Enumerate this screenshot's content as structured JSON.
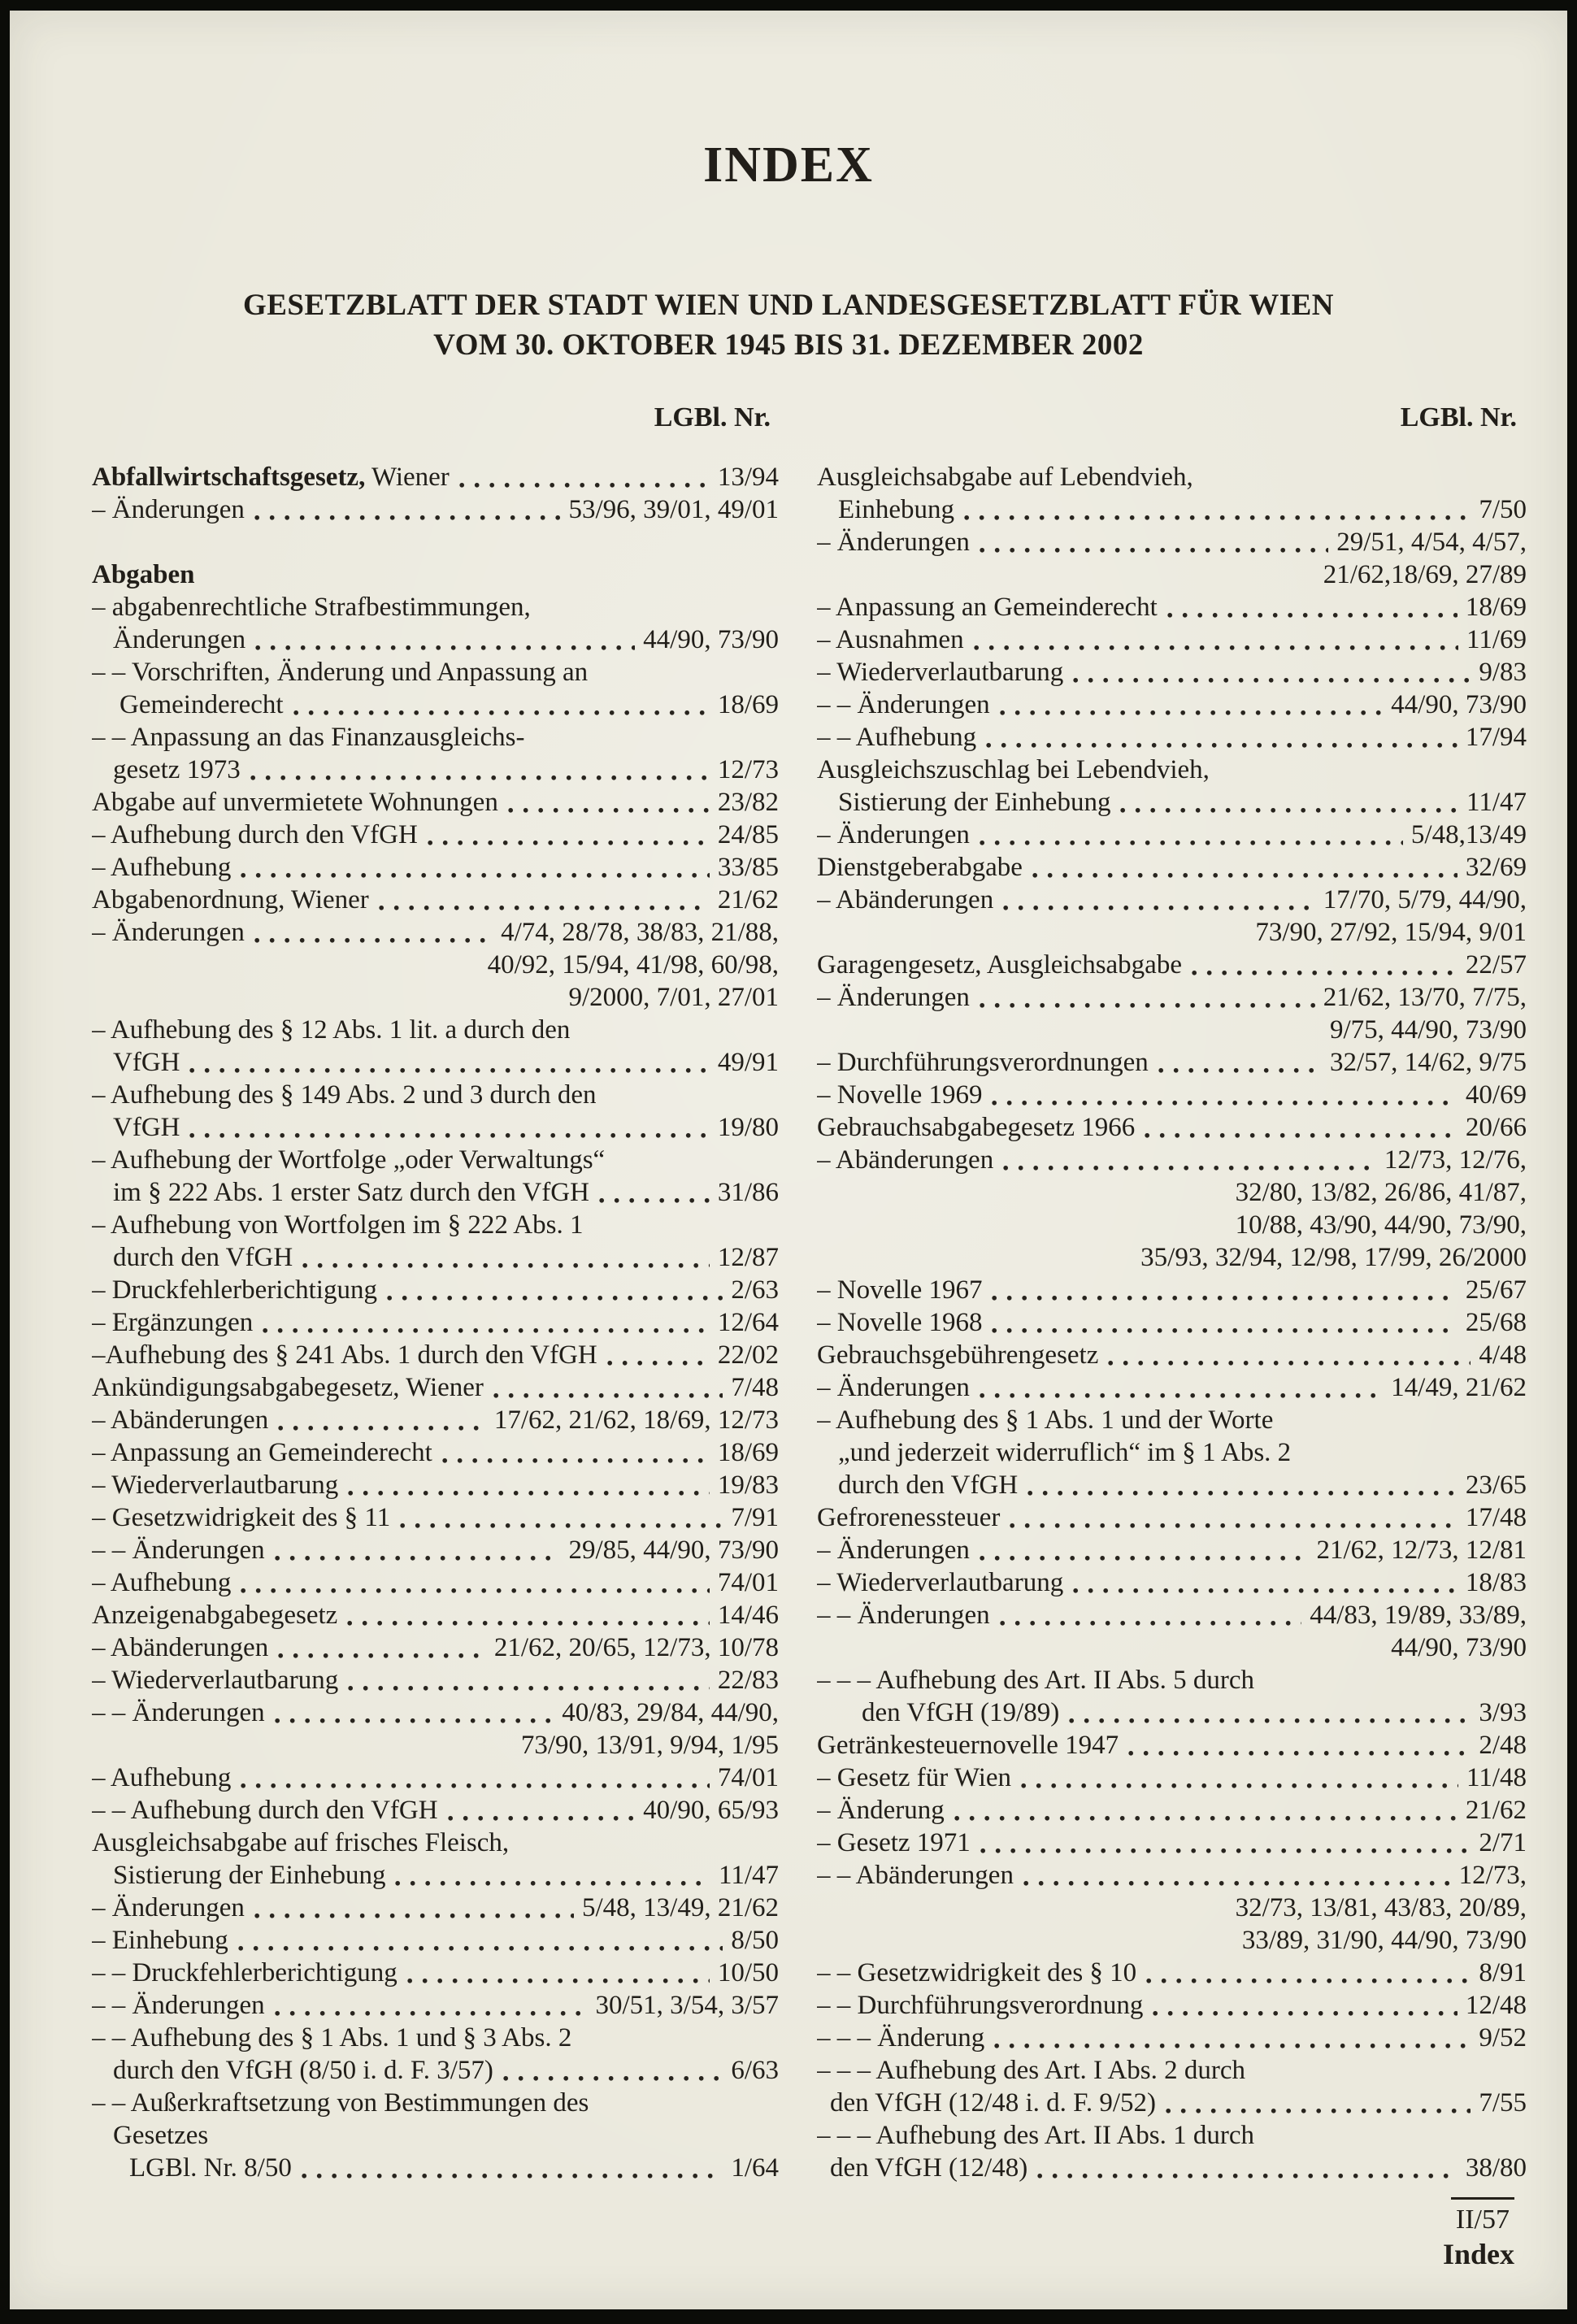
{
  "document": {
    "title": "INDEX",
    "subtitle_line1": "GESETZBLATT DER STADT WIEN UND LANDESGESETZBLATT FÜR WIEN",
    "subtitle_line2": "VOM 30. OKTOBER 1945 BIS 31. DEZEMBER 2002",
    "column_headers": {
      "left": "LGBl. Nr.",
      "right": "LGBl. Nr."
    },
    "footer": {
      "page_ref": "II/57",
      "section": "Index"
    },
    "colors": {
      "paper": "#ebe9dd",
      "ink": "#211e19",
      "frame": "#0b0c08"
    }
  },
  "index": {
    "left": [
      {
        "bt": "Abfallwirtschaftsgesetz,",
        "t": " Wiener",
        "dots": true,
        "ref": "13/94"
      },
      {
        "t": "– Änderungen",
        "dots": true,
        "ref": "53/96, 39/01, 49/01"
      },
      {
        "blank": true
      },
      {
        "bt": "Abgaben"
      },
      {
        "t": "– abgabenrechtliche Strafbestimmungen,"
      },
      {
        "t": "Änderungen",
        "ind": 26,
        "dots": true,
        "ref": "44/90, 73/90"
      },
      {
        "t": "– – Vorschriften, Änderung und Anpassung an"
      },
      {
        "t": "Gemeinderecht",
        "ind": 34,
        "dots": true,
        "ref": "18/69"
      },
      {
        "t": "– – Anpassung an das Finanzausgleichs-"
      },
      {
        "t": "gesetz 1973",
        "ind": 26,
        "dots": true,
        "ref": "12/73"
      },
      {
        "t": "Abgabe auf unvermietete Wohnungen",
        "dots": true,
        "ref": "23/82"
      },
      {
        "t": "– Aufhebung durch den VfGH",
        "dots": true,
        "ref": "24/85"
      },
      {
        "t": "– Aufhebung",
        "dots": true,
        "ref": "33/85"
      },
      {
        "t": "Abgabenordnung, Wiener",
        "dots": true,
        "ref": "21/62"
      },
      {
        "t": "– Änderungen",
        "dots": true,
        "ref": "4/74, 28/78, 38/83, 21/88,"
      },
      {
        "ref": "40/92, 15/94, 41/98, 60/98,"
      },
      {
        "ref": "9/2000, 7/01, 27/01"
      },
      {
        "t": "– Aufhebung des § 12 Abs. 1 lit. a durch den"
      },
      {
        "t": "VfGH",
        "ind": 26,
        "dots": true,
        "ref": "49/91"
      },
      {
        "t": "– Aufhebung des § 149 Abs. 2 und 3 durch den"
      },
      {
        "t": "VfGH",
        "ind": 26,
        "dots": true,
        "ref": "19/80"
      },
      {
        "t": "– Aufhebung der Wortfolge „oder Verwaltungs“"
      },
      {
        "t": "im § 222 Abs. 1 erster Satz durch den VfGH",
        "ind": 26,
        "dots": true,
        "ref": "31/86"
      },
      {
        "t": "– Aufhebung von Wortfolgen im § 222 Abs. 1"
      },
      {
        "t": "durch den VfGH",
        "ind": 26,
        "dots": true,
        "ref": "12/87"
      },
      {
        "t": "– Druckfehlerberichtigung",
        "dots": true,
        "ref": "2/63"
      },
      {
        "t": "– Ergänzungen",
        "dots": true,
        "ref": "12/64"
      },
      {
        "t": "–Aufhebung des § 241 Abs. 1 durch den VfGH",
        "dots": true,
        "ref": "22/02"
      },
      {
        "t": "Ankündigungsabgabegesetz, Wiener",
        "dots": true,
        "ref": "7/48"
      },
      {
        "t": "– Abänderungen",
        "dots": true,
        "ref": "17/62, 21/62, 18/69, 12/73"
      },
      {
        "t": "– Anpassung an Gemeinderecht",
        "dots": true,
        "ref": "18/69"
      },
      {
        "t": "– Wiederverlautbarung",
        "dots": true,
        "ref": "19/83"
      },
      {
        "t": "– Gesetzwidrigkeit des § 11",
        "dots": true,
        "ref": "7/91"
      },
      {
        "t": "– – Änderungen",
        "dots": true,
        "ref": "29/85, 44/90, 73/90"
      },
      {
        "t": "– Aufhebung",
        "dots": true,
        "ref": "74/01"
      },
      {
        "t": "Anzeigenabgabegesetz",
        "dots": true,
        "ref": "14/46"
      },
      {
        "t": "– Abänderungen",
        "dots": true,
        "ref": "21/62, 20/65, 12/73, 10/78"
      },
      {
        "t": "– Wiederverlautbarung",
        "dots": true,
        "ref": "22/83"
      },
      {
        "t": "– – Änderungen",
        "dots": true,
        "ref": "40/83, 29/84, 44/90,"
      },
      {
        "ref": "73/90, 13/91, 9/94, 1/95"
      },
      {
        "t": "– Aufhebung",
        "dots": true,
        "ref": "74/01"
      },
      {
        "t": "– – Aufhebung durch den VfGH",
        "dots": true,
        "ref": "40/90, 65/93"
      },
      {
        "t": "Ausgleichsabgabe auf frisches Fleisch,"
      },
      {
        "t": "Sistierung der Einhebung",
        "ind": 26,
        "dots": true,
        "ref": "11/47"
      },
      {
        "t": "– Änderungen",
        "dots": true,
        "ref": "5/48, 13/49, 21/62"
      },
      {
        "t": "– Einhebung",
        "dots": true,
        "ref": "8/50"
      },
      {
        "t": "– – Druckfehlerberichtigung",
        "dots": true,
        "ref": "10/50"
      },
      {
        "t": "– – Änderungen",
        "dots": true,
        "ref": "30/51, 3/54, 3/57"
      },
      {
        "t": "– – Aufhebung des § 1 Abs. 1 und § 3 Abs. 2"
      },
      {
        "t": "durch den VfGH (8/50 i. d. F. 3/57)",
        "ind": 26,
        "dots": true,
        "ref": "6/63"
      },
      {
        "t": "– – Außerkraftsetzung von Bestimmungen des"
      },
      {
        "t": "Gesetzes",
        "ind": 26
      },
      {
        "t": "LGBl. Nr. 8/50",
        "ind": 46,
        "dots": true,
        "ref": "1/64"
      }
    ],
    "right": [
      {
        "t": "Ausgleichsabgabe auf Lebendvieh,"
      },
      {
        "t": "Einhebung",
        "ind": 26,
        "dots": true,
        "ref": "7/50"
      },
      {
        "t": "– Änderungen",
        "dots": true,
        "ref": "29/51, 4/54, 4/57,"
      },
      {
        "ref": "21/62,18/69, 27/89"
      },
      {
        "t": "– Anpassung an Gemeinderecht",
        "dots": true,
        "ref": "18/69"
      },
      {
        "t": "– Ausnahmen",
        "dots": true,
        "ref": "11/69"
      },
      {
        "t": "– Wiederverlautbarung",
        "dots": true,
        "ref": "9/83"
      },
      {
        "t": "– – Änderungen",
        "dots": true,
        "ref": "44/90, 73/90"
      },
      {
        "t": "– – Aufhebung",
        "dots": true,
        "ref": "17/94"
      },
      {
        "t": "Ausgleichszuschlag bei Lebendvieh,"
      },
      {
        "t": "Sistierung der Einhebung",
        "ind": 26,
        "dots": true,
        "ref": "11/47"
      },
      {
        "t": "– Änderungen",
        "dots": true,
        "ref": "5/48,13/49"
      },
      {
        "t": "Dienstgeberabgabe",
        "dots": true,
        "ref": "32/69"
      },
      {
        "t": "– Abänderungen",
        "dots": true,
        "ref": "17/70, 5/79, 44/90,"
      },
      {
        "ref": "73/90, 27/92, 15/94, 9/01"
      },
      {
        "t": "Garagengesetz, Ausgleichsabgabe",
        "dots": true,
        "ref": "22/57"
      },
      {
        "t": "– Änderungen",
        "dots": true,
        "ref": "21/62, 13/70, 7/75,"
      },
      {
        "ref": "9/75, 44/90, 73/90"
      },
      {
        "t": "– Durchführungsverordnungen",
        "dots": true,
        "ref": "32/57, 14/62, 9/75"
      },
      {
        "t": "– Novelle 1969",
        "dots": true,
        "ref": "40/69"
      },
      {
        "t": "Gebrauchsabgabegesetz 1966",
        "dots": true,
        "ref": "20/66"
      },
      {
        "t": "– Abänderungen",
        "dots": true,
        "ref": "12/73, 12/76,"
      },
      {
        "ref": "32/80, 13/82, 26/86, 41/87,"
      },
      {
        "ref": "10/88, 43/90, 44/90, 73/90,"
      },
      {
        "ref": "35/93, 32/94, 12/98, 17/99, 26/2000"
      },
      {
        "t": "– Novelle 1967",
        "dots": true,
        "ref": "25/67"
      },
      {
        "t": "– Novelle 1968",
        "dots": true,
        "ref": "25/68"
      },
      {
        "t": "Gebrauchsgebührengesetz",
        "dots": true,
        "ref": "4/48"
      },
      {
        "t": "– Änderungen",
        "dots": true,
        "ref": "14/49, 21/62"
      },
      {
        "t": "– Aufhebung des § 1 Abs. 1 und der Worte"
      },
      {
        "t": "„und jederzeit widerruflich“ im § 1 Abs. 2",
        "ind": 26
      },
      {
        "t": "durch den VfGH",
        "ind": 26,
        "dots": true,
        "ref": "23/65"
      },
      {
        "t": "Gefrorenessteuer",
        "dots": true,
        "ref": "17/48"
      },
      {
        "t": "– Änderungen",
        "dots": true,
        "ref": "21/62, 12/73, 12/81"
      },
      {
        "t": "– Wiederverlautbarung",
        "dots": true,
        "ref": "18/83"
      },
      {
        "t": "– – Änderungen",
        "dots": true,
        "ref": "44/83, 19/89, 33/89,"
      },
      {
        "ref": "44/90, 73/90"
      },
      {
        "t": "– – – Aufhebung des Art. II Abs. 5 durch"
      },
      {
        "t": "den VfGH (19/89)",
        "ind": 55,
        "dots": true,
        "ref": "3/93"
      },
      {
        "t": "Getränkesteuernovelle 1947",
        "dots": true,
        "ref": "2/48"
      },
      {
        "t": "– Gesetz für Wien",
        "dots": true,
        "ref": "11/48"
      },
      {
        "t": "– Änderung",
        "dots": true,
        "ref": "21/62"
      },
      {
        "t": "– Gesetz 1971",
        "dots": true,
        "ref": "2/71"
      },
      {
        "t": "– – Abänderungen",
        "dots": true,
        "ref": "12/73,"
      },
      {
        "ref": "32/73, 13/81, 43/83, 20/89,"
      },
      {
        "ref": "33/89, 31/90, 44/90, 73/90"
      },
      {
        "t": "– – Gesetzwidrigkeit des § 10",
        "dots": true,
        "ref": "8/91"
      },
      {
        "t": "– – Durchführungsverordnung",
        "dots": true,
        "ref": "12/48"
      },
      {
        "t": "– – – Änderung",
        "dots": true,
        "ref": "9/52"
      },
      {
        "t": "– – – Aufhebung des Art. I Abs. 2 durch"
      },
      {
        "t": "den VfGH (12/48 i. d. F. 9/52)",
        "ind": 16,
        "dots": true,
        "ref": "7/55"
      },
      {
        "t": "– – – Aufhebung des Art. II Abs. 1 durch"
      },
      {
        "t": "den VfGH (12/48)",
        "ind": 16,
        "dots": true,
        "ref": "38/80"
      }
    ]
  }
}
